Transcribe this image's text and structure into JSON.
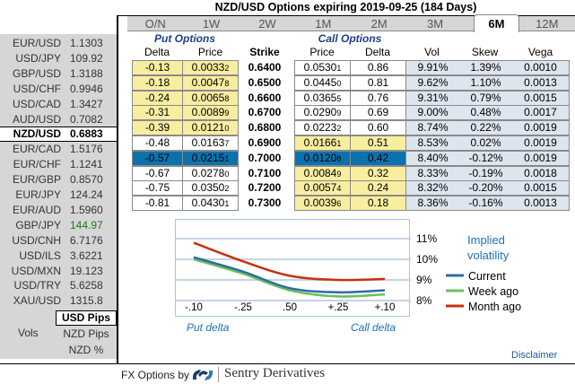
{
  "title": "NZD/USD Options expiring 2019-09-25 (184 Days)",
  "rates": [
    {
      "pair": "EUR/USD",
      "value": "1.1303"
    },
    {
      "pair": "USD/JPY",
      "value": "109.92"
    },
    {
      "pair": "GBP/USD",
      "value": "1.3188"
    },
    {
      "pair": "USD/CHF",
      "value": "0.9946"
    },
    {
      "pair": "USD/CAD",
      "value": "1.3427"
    },
    {
      "pair": "AUD/USD",
      "value": "0.7082"
    },
    {
      "pair": "NZD/USD",
      "value": "0.6883",
      "selected": true
    },
    {
      "pair": "EUR/CAD",
      "value": "1.5176"
    },
    {
      "pair": "EUR/CHF",
      "value": "1.1241"
    },
    {
      "pair": "EUR/GBP",
      "value": "0.8570"
    },
    {
      "pair": "EUR/JPY",
      "value": "124.24"
    },
    {
      "pair": "EUR/AUD",
      "value": "1.5960"
    },
    {
      "pair": "GBP/JPY",
      "value": "144.97",
      "color": "#1a7a1a"
    },
    {
      "pair": "USD/CNH",
      "value": "6.7176"
    },
    {
      "pair": "USD/ILS",
      "value": "3.6221"
    },
    {
      "pair": "USD/MXN",
      "value": "19.123"
    },
    {
      "pair": "USD/TRY",
      "value": "5.6258"
    },
    {
      "pair": "XAU/USD",
      "value": "1315.8"
    }
  ],
  "units": {
    "label": "Vols",
    "options": [
      "USD Pips",
      "NZD Pips",
      "NZD %"
    ],
    "selected": "USD Pips"
  },
  "tabs": [
    "O/N",
    "1W",
    "2W",
    "1M",
    "2M",
    "3M",
    "6M",
    "12M"
  ],
  "selected_tab": "6M",
  "headers": {
    "put": "Put Options",
    "call": "Call Options",
    "delta": "Delta",
    "price": "Price",
    "strike": "Strike",
    "call_price": "Price",
    "call_delta": "Delta",
    "vol": "Vol",
    "skew": "Skew",
    "vega": "Vega"
  },
  "rows": [
    {
      "put_delta": "-0.13",
      "put_price": "0.0033",
      "put_pip": "2",
      "strike": "0.6400",
      "call_price": "0.0530",
      "call_pip": "1",
      "call_delta": "0.86",
      "vol": "9.91%",
      "skew": "1.39%",
      "vega": "0.0010",
      "itm": "put"
    },
    {
      "put_delta": "-0.18",
      "put_price": "0.0047",
      "put_pip": "8",
      "strike": "0.6500",
      "call_price": "0.0445",
      "call_pip": "0",
      "call_delta": "0.81",
      "vol": "9.62%",
      "skew": "1.10%",
      "vega": "0.0013",
      "itm": "put"
    },
    {
      "put_delta": "-0.24",
      "put_price": "0.0065",
      "put_pip": "8",
      "strike": "0.6600",
      "call_price": "0.0365",
      "call_pip": "5",
      "call_delta": "0.76",
      "vol": "9.31%",
      "skew": "0.79%",
      "vega": "0.0015",
      "itm": "put"
    },
    {
      "put_delta": "-0.31",
      "put_price": "0.0089",
      "put_pip": "9",
      "strike": "0.6700",
      "call_price": "0.0290",
      "call_pip": "9",
      "call_delta": "0.69",
      "vol": "9.00%",
      "skew": "0.48%",
      "vega": "0.0017",
      "itm": "put"
    },
    {
      "put_delta": "-0.39",
      "put_price": "0.0121",
      "put_pip": "0",
      "strike": "0.6800",
      "call_price": "0.0223",
      "call_pip": "2",
      "call_delta": "0.60",
      "vol": "8.74%",
      "skew": "0.22%",
      "vega": "0.0019",
      "itm": "put"
    },
    {
      "put_delta": "-0.48",
      "put_price": "0.0163",
      "put_pip": "7",
      "strike": "0.6900",
      "call_price": "0.0166",
      "call_pip": "1",
      "call_delta": "0.51",
      "vol": "8.53%",
      "skew": "0.02%",
      "vega": "0.0019",
      "itm": "call"
    },
    {
      "put_delta": "-0.57",
      "put_price": "0.0215",
      "put_pip": "1",
      "strike": "0.7000",
      "call_price": "0.0120",
      "call_pip": "8",
      "call_delta": "0.42",
      "vol": "8.40%",
      "skew": "-0.12%",
      "vega": "0.0019",
      "itm": "atm"
    },
    {
      "put_delta": "-0.67",
      "put_price": "0.0278",
      "put_pip": "0",
      "strike": "0.7100",
      "call_price": "0.0084",
      "call_pip": "9",
      "call_delta": "0.32",
      "vol": "8.33%",
      "skew": "-0.19%",
      "vega": "0.0018",
      "itm": "call"
    },
    {
      "put_delta": "-0.75",
      "put_price": "0.0350",
      "put_pip": "2",
      "strike": "0.7200",
      "call_price": "0.0057",
      "call_pip": "4",
      "call_delta": "0.24",
      "vol": "8.32%",
      "skew": "-0.20%",
      "vega": "0.0015",
      "itm": "call"
    },
    {
      "put_delta": "-0.81",
      "put_price": "0.0430",
      "put_pip": "1",
      "strike": "0.7300",
      "call_price": "0.0039",
      "call_pip": "6",
      "call_delta": "0.18",
      "vol": "8.36%",
      "skew": "-0.16%",
      "vega": "0.0013",
      "itm": "call"
    }
  ],
  "colors": {
    "itm": "#f8eea0",
    "atm": "#0b72ad",
    "vol_bg": "#dde5ef"
  },
  "chart_data": {
    "type": "line",
    "title": "Implied volatility",
    "categories": [
      "-.10",
      "-.25",
      ".50",
      "+.25",
      "+.10"
    ],
    "xlabel_left": "Put delta",
    "xlabel_right": "Call delta",
    "yticks": [
      "8%",
      "9%",
      "10%",
      "11%"
    ],
    "ylim": [
      7.8,
      11.3
    ],
    "grid": true,
    "legend": "right",
    "series": [
      {
        "name": "Current",
        "color": "#2f6aa8",
        "values": [
          10.1,
          9.4,
          8.6,
          8.4,
          8.5
        ]
      },
      {
        "name": "Week ago",
        "color": "#6cc05a",
        "values": [
          10.0,
          9.3,
          8.5,
          8.2,
          8.3
        ]
      },
      {
        "name": "Month ago",
        "color": "#c8300e",
        "values": [
          10.8,
          9.9,
          9.2,
          9.0,
          9.05
        ]
      }
    ]
  },
  "disclaimer": "Disclaimer",
  "footer": {
    "prefix": "FX Options by",
    "brand": "Sentry Derivatives"
  }
}
